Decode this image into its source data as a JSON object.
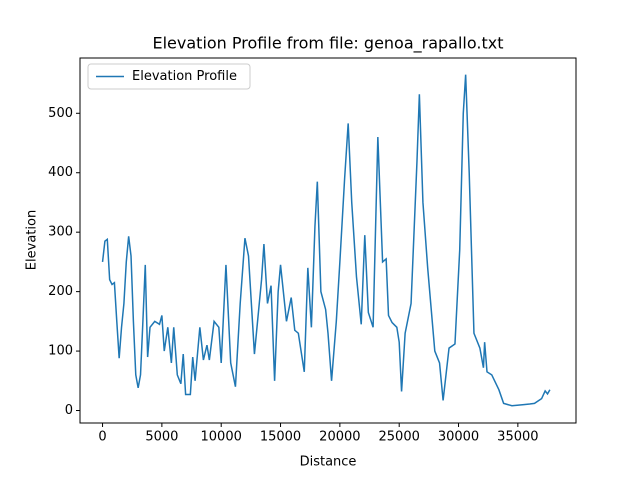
{
  "chart_data": {
    "type": "line",
    "title": "Elevation Profile from file: genoa_rapallo.txt",
    "x_label": "Distance",
    "y_label": "Elevation",
    "xlim": [
      -1900,
      39900
    ],
    "ylim": [
      -21,
      593
    ],
    "xticks": [
      0,
      5000,
      10000,
      15000,
      20000,
      25000,
      30000,
      35000
    ],
    "yticks": [
      0,
      100,
      200,
      300,
      400,
      500
    ],
    "legend": "upper left",
    "x": [
      0,
      200,
      400,
      600,
      800,
      1000,
      1200,
      1400,
      1600,
      1800,
      2000,
      2200,
      2400,
      2600,
      2800,
      3000,
      3200,
      3400,
      3600,
      3800,
      4000,
      4400,
      4800,
      5000,
      5200,
      5500,
      5800,
      6000,
      6300,
      6600,
      6800,
      7000,
      7400,
      7600,
      7800,
      8200,
      8500,
      8800,
      9000,
      9400,
      9800,
      10000,
      10400,
      10800,
      11200,
      11600,
      12000,
      12300,
      12800,
      13400,
      13600,
      13900,
      14200,
      14500,
      14800,
      15000,
      15500,
      15900,
      16200,
      16500,
      17000,
      17300,
      17600,
      17900,
      18100,
      18400,
      18800,
      19000,
      19300,
      19700,
      20000,
      20400,
      20700,
      21000,
      21400,
      21800,
      22100,
      22400,
      22800,
      23200,
      23600,
      23900,
      24100,
      24400,
      24800,
      25000,
      25200,
      25500,
      26000,
      26500,
      26700,
      27000,
      27400,
      28000,
      28400,
      28700,
      29200,
      29700,
      30100,
      30400,
      30600,
      30900,
      31300,
      31800,
      32100,
      32200,
      32400,
      32800,
      33400,
      33800,
      34500,
      35500,
      36000,
      36400,
      37000,
      37300,
      37500,
      37700
    ],
    "series": [
      {
        "name": "Elevation Profile",
        "color": "#1f77b4",
        "values": [
          250,
          285,
          288,
          220,
          212,
          215,
          150,
          88,
          140,
          180,
          250,
          293,
          260,
          150,
          60,
          38,
          60,
          150,
          245,
          90,
          140,
          150,
          145,
          160,
          100,
          140,
          80,
          140,
          60,
          45,
          95,
          27,
          27,
          90,
          50,
          140,
          85,
          110,
          85,
          150,
          140,
          80,
          245,
          80,
          40,
          180,
          290,
          260,
          95,
          220,
          280,
          180,
          210,
          50,
          200,
          245,
          150,
          190,
          135,
          130,
          65,
          240,
          140,
          310,
          385,
          200,
          170,
          130,
          50,
          150,
          250,
          390,
          483,
          350,
          225,
          145,
          295,
          165,
          140,
          460,
          250,
          255,
          160,
          148,
          140,
          115,
          32,
          130,
          180,
          420,
          532,
          350,
          240,
          100,
          80,
          17,
          105,
          112,
          270,
          500,
          565,
          400,
          130,
          105,
          72,
          115,
          65,
          60,
          35,
          12,
          8,
          10,
          11,
          12,
          20,
          33,
          28,
          35
        ]
      }
    ]
  }
}
